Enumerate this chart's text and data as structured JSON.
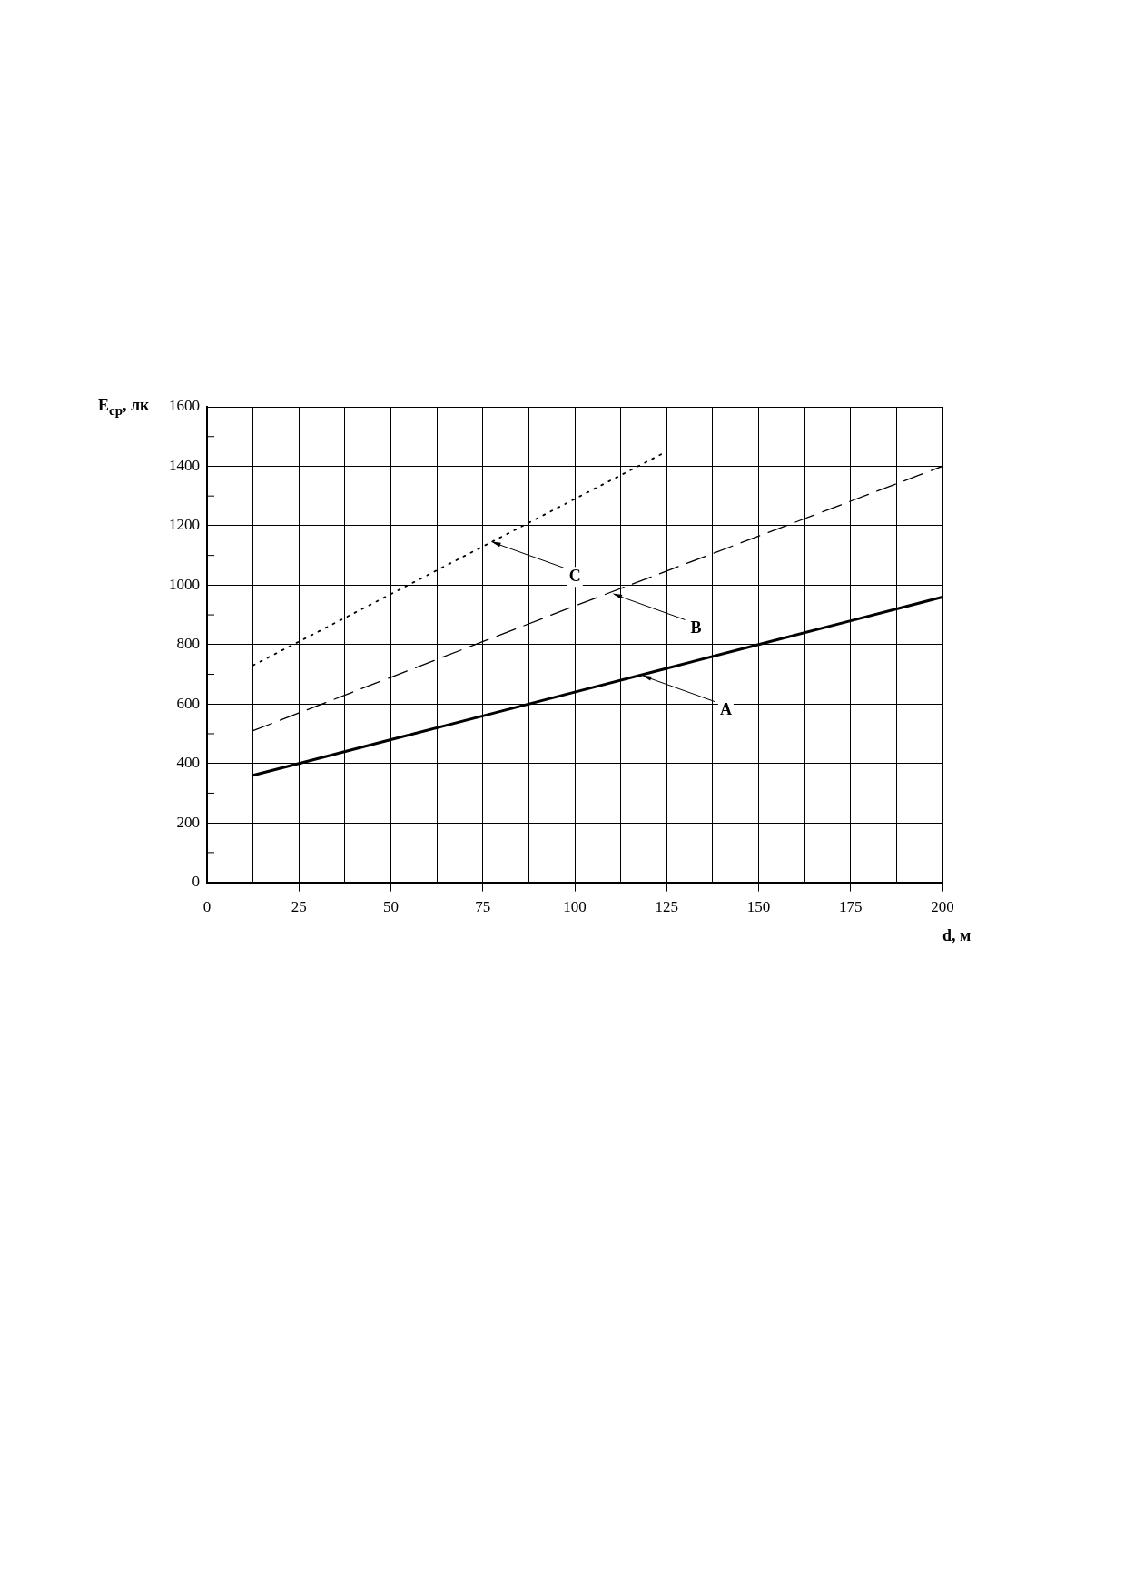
{
  "chart_data": {
    "type": "line",
    "ylabel": "E$_{ср}$, лк",
    "xlabel": "d, м",
    "xlim": [
      0,
      200
    ],
    "xticks": [
      0,
      {
        "value": 12.5,
        "label": null
      },
      25,
      {
        "value": 37.5,
        "label": null
      },
      50,
      {
        "value": 62.5,
        "label": null
      },
      75,
      {
        "value": 87.5,
        "label": null
      },
      100,
      {
        "value": 112.5,
        "label": null
      },
      125,
      {
        "value": 137.5,
        "label": null
      },
      150,
      {
        "value": 162.5,
        "label": null
      },
      175,
      {
        "value": 187.5,
        "label": null
      },
      200
    ],
    "ylim": [
      0,
      1600
    ],
    "yticks": [
      0,
      {
        "value": 100,
        "label": null
      },
      200,
      {
        "value": 300,
        "label": null
      },
      400,
      {
        "value": 500,
        "label": null
      },
      600,
      {
        "value": 700,
        "label": null
      },
      800,
      {
        "value": 900,
        "label": null
      },
      1000,
      {
        "value": 1100,
        "label": null
      },
      1200,
      {
        "value": 1300,
        "label": null
      },
      1400,
      {
        "value": 1500,
        "label": null
      },
      1600
    ],
    "grid": true,
    "legend": false,
    "marker": "none",
    "series": [
      {
        "color": "#000000",
        "line_style": "solid",
        "x": [
          12.5,
          25,
          50,
          75,
          100,
          125,
          150,
          175,
          200
        ],
        "values": [
          360,
          400,
          480,
          560,
          640,
          720,
          800,
          880,
          960
        ]
      },
      {
        "color": "#000000",
        "line_style": "dashed",
        "x": [
          12.5,
          50,
          100,
          150,
          200
        ],
        "values": [
          510,
          690,
          930,
          1165,
          1400
        ]
      },
      {
        "color": "#000000",
        "line_style": "dotted",
        "x": [
          12.5,
          25,
          50,
          75,
          100,
          125
        ],
        "values": [
          730,
          810,
          970,
          1130,
          1290,
          1450
        ]
      }
    ],
    "annotations": [
      {
        "text": "A",
        "x": 118,
        "y": 700
      },
      {
        "text": "B",
        "x": 110,
        "y": 975
      },
      {
        "text": "C",
        "x": 77,
        "y": 1150
      }
    ]
  }
}
